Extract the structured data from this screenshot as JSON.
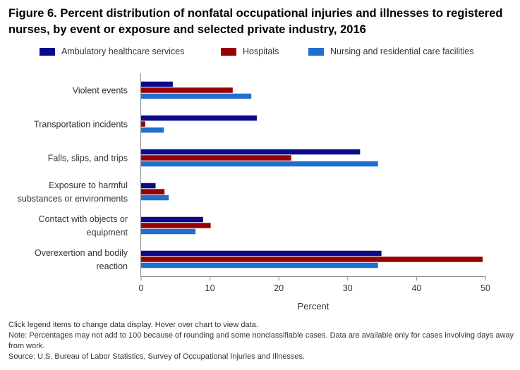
{
  "title": "Figure 6. Percent distribution of nonfatal occupational injuries and illnesses to registered nurses, by event or exposure and selected private industry, 2016",
  "colors": {
    "ambulatory": "#0a0a8c",
    "hospitals": "#990000",
    "nursing": "#1f6fcf"
  },
  "notes": {
    "line1": "Click legend items to change data display. Hover over chart to view data.",
    "line2": "Note: Percentages may not add to 100 because of rounding and some nonclassifiable cases. Data are available only for cases involving days away from work.",
    "line3": "Source: U.S. Bureau of Labor Statistics, Survey of Occupational Injuries and Illnesses."
  },
  "chart_data": {
    "type": "bar",
    "orientation": "horizontal",
    "title": "Figure 6. Percent distribution of nonfatal occupational injuries and illnesses to registered nurses, by event or exposure and selected private industry, 2016",
    "xlabel": "Percent",
    "ylabel": "",
    "xlim": [
      0,
      50
    ],
    "xticks": [
      "0",
      "10",
      "20",
      "30",
      "40",
      "50"
    ],
    "grid": false,
    "legend_position": "top",
    "categories": [
      [
        "Violent events"
      ],
      [
        "Transportation incidents"
      ],
      [
        "Falls, slips, and trips"
      ],
      [
        "Exposure to harmful",
        "substances or environments"
      ],
      [
        "Contact with objects or",
        "equipment"
      ],
      [
        "Overexertion and bodily",
        "reaction"
      ]
    ],
    "series": [
      {
        "name": "Ambulatory healthcare services",
        "values": [
          4.6,
          16.8,
          31.8,
          2.1,
          9.0,
          34.9
        ]
      },
      {
        "name": "Hospitals",
        "values": [
          13.3,
          0.6,
          21.8,
          3.4,
          10.1,
          49.6
        ]
      },
      {
        "name": "Nursing and residential care facilities",
        "values": [
          16.0,
          3.3,
          34.4,
          4.0,
          7.9,
          34.4
        ]
      }
    ]
  }
}
